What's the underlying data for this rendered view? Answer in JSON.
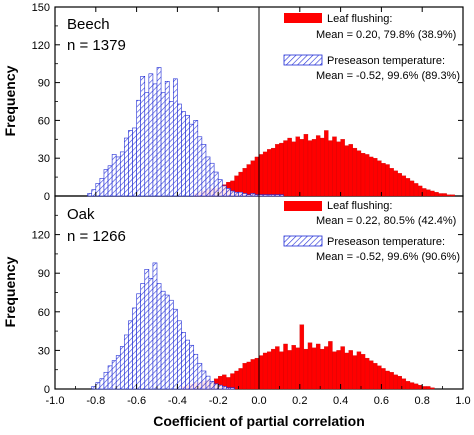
{
  "chart_data": {
    "type": "bar",
    "xlabel": "Coefficient of partial correlation",
    "ylabel": "Frequency",
    "xlim": [
      -1.0,
      1.0
    ],
    "xticks": [
      "-1.0",
      "-0.8",
      "-0.6",
      "-0.4",
      "-0.2",
      "0.0",
      "0.2",
      "0.4",
      "0.6",
      "0.8",
      "1.0"
    ],
    "bin_width": 0.02,
    "colors": {
      "leaf": "#ff0000",
      "temp": "#1f2bd6"
    },
    "panels": [
      {
        "name": "Beech",
        "n_label": "n = 1379",
        "ylim": [
          0,
          150
        ],
        "yticks": [
          "0",
          "30",
          "60",
          "90",
          "120",
          "150"
        ],
        "legend": {
          "leaf_label": "Leaf flushing:",
          "leaf_mean": "Mean = 0.20, 79.8% (38.9%)",
          "temp_label": "Preseason temperature:",
          "temp_mean": "Mean = -0.52, 99.6% (89.3%)"
        },
        "series": [
          {
            "name": "Preseason temperature",
            "style": "hatched",
            "bin_start": -0.84,
            "values": [
              2,
              5,
              10,
              14,
              21,
              24,
              33,
              31,
              35,
              46,
              52,
              54,
              76,
              95,
              82,
              97,
              89,
              102,
              82,
              91,
              75,
              93,
              73,
              67,
              64,
              57,
              60,
              47,
              41,
              31,
              26,
              19,
              13,
              8,
              6,
              4,
              3,
              3,
              2,
              1,
              2,
              1,
              1,
              1,
              1,
              1,
              1,
              1
            ]
          },
          {
            "name": "Leaf flushing",
            "style": "solid",
            "bin_start": -0.32,
            "values": [
              2,
              3,
              4,
              5,
              6,
              6,
              7,
              9,
              11,
              12,
              16,
              19,
              22,
              25,
              28,
              31,
              33,
              35,
              37,
              38,
              41,
              42,
              44,
              46,
              43,
              47,
              45,
              49,
              44,
              45,
              48,
              46,
              52,
              44,
              47,
              43,
              45,
              40,
              41,
              38,
              36,
              34,
              33,
              31,
              30,
              28,
              26,
              25,
              22,
              20,
              18,
              16,
              14,
              12,
              10,
              8,
              6,
              5,
              4,
              3,
              2,
              2,
              1,
              1
            ]
          }
        ]
      },
      {
        "name": "Oak",
        "n_label": "n = 1266",
        "ylim": [
          0,
          150
        ],
        "yticks": [
          "0",
          "30",
          "60",
          "90",
          "120"
        ],
        "legend": {
          "leaf_label": "Leaf flushing:",
          "leaf_mean": "Mean = 0.22, 80.5% (42.4%)",
          "temp_label": "Preseason temperature:",
          "temp_mean": "Mean = -0.52, 99.6% (90.6%)"
        },
        "series": [
          {
            "name": "Preseason temperature",
            "style": "hatched",
            "bin_start": -0.82,
            "values": [
              2,
              5,
              8,
              13,
              18,
              22,
              26,
              33,
              42,
              53,
              63,
              74,
              82,
              93,
              86,
              98,
              82,
              76,
              73,
              69,
              62,
              53,
              44,
              38,
              34,
              27,
              20,
              14,
              10,
              6,
              4,
              3,
              2,
              1,
              1
            ]
          },
          {
            "name": "Leaf flushing",
            "style": "solid",
            "bin_start": -0.38,
            "values": [
              2,
              3,
              4,
              5,
              5,
              6,
              7,
              6,
              8,
              10,
              11,
              9,
              12,
              14,
              16,
              20,
              21,
              23,
              24,
              26,
              28,
              29,
              31,
              33,
              29,
              35,
              30,
              34,
              32,
              50,
              31,
              36,
              32,
              35,
              31,
              33,
              37,
              29,
              30,
              33,
              28,
              30,
              26,
              29,
              27,
              24,
              22,
              20,
              18,
              16,
              14,
              13,
              11,
              10,
              8,
              6,
              5,
              4,
              3,
              2,
              2,
              1
            ]
          }
        ]
      }
    ]
  }
}
